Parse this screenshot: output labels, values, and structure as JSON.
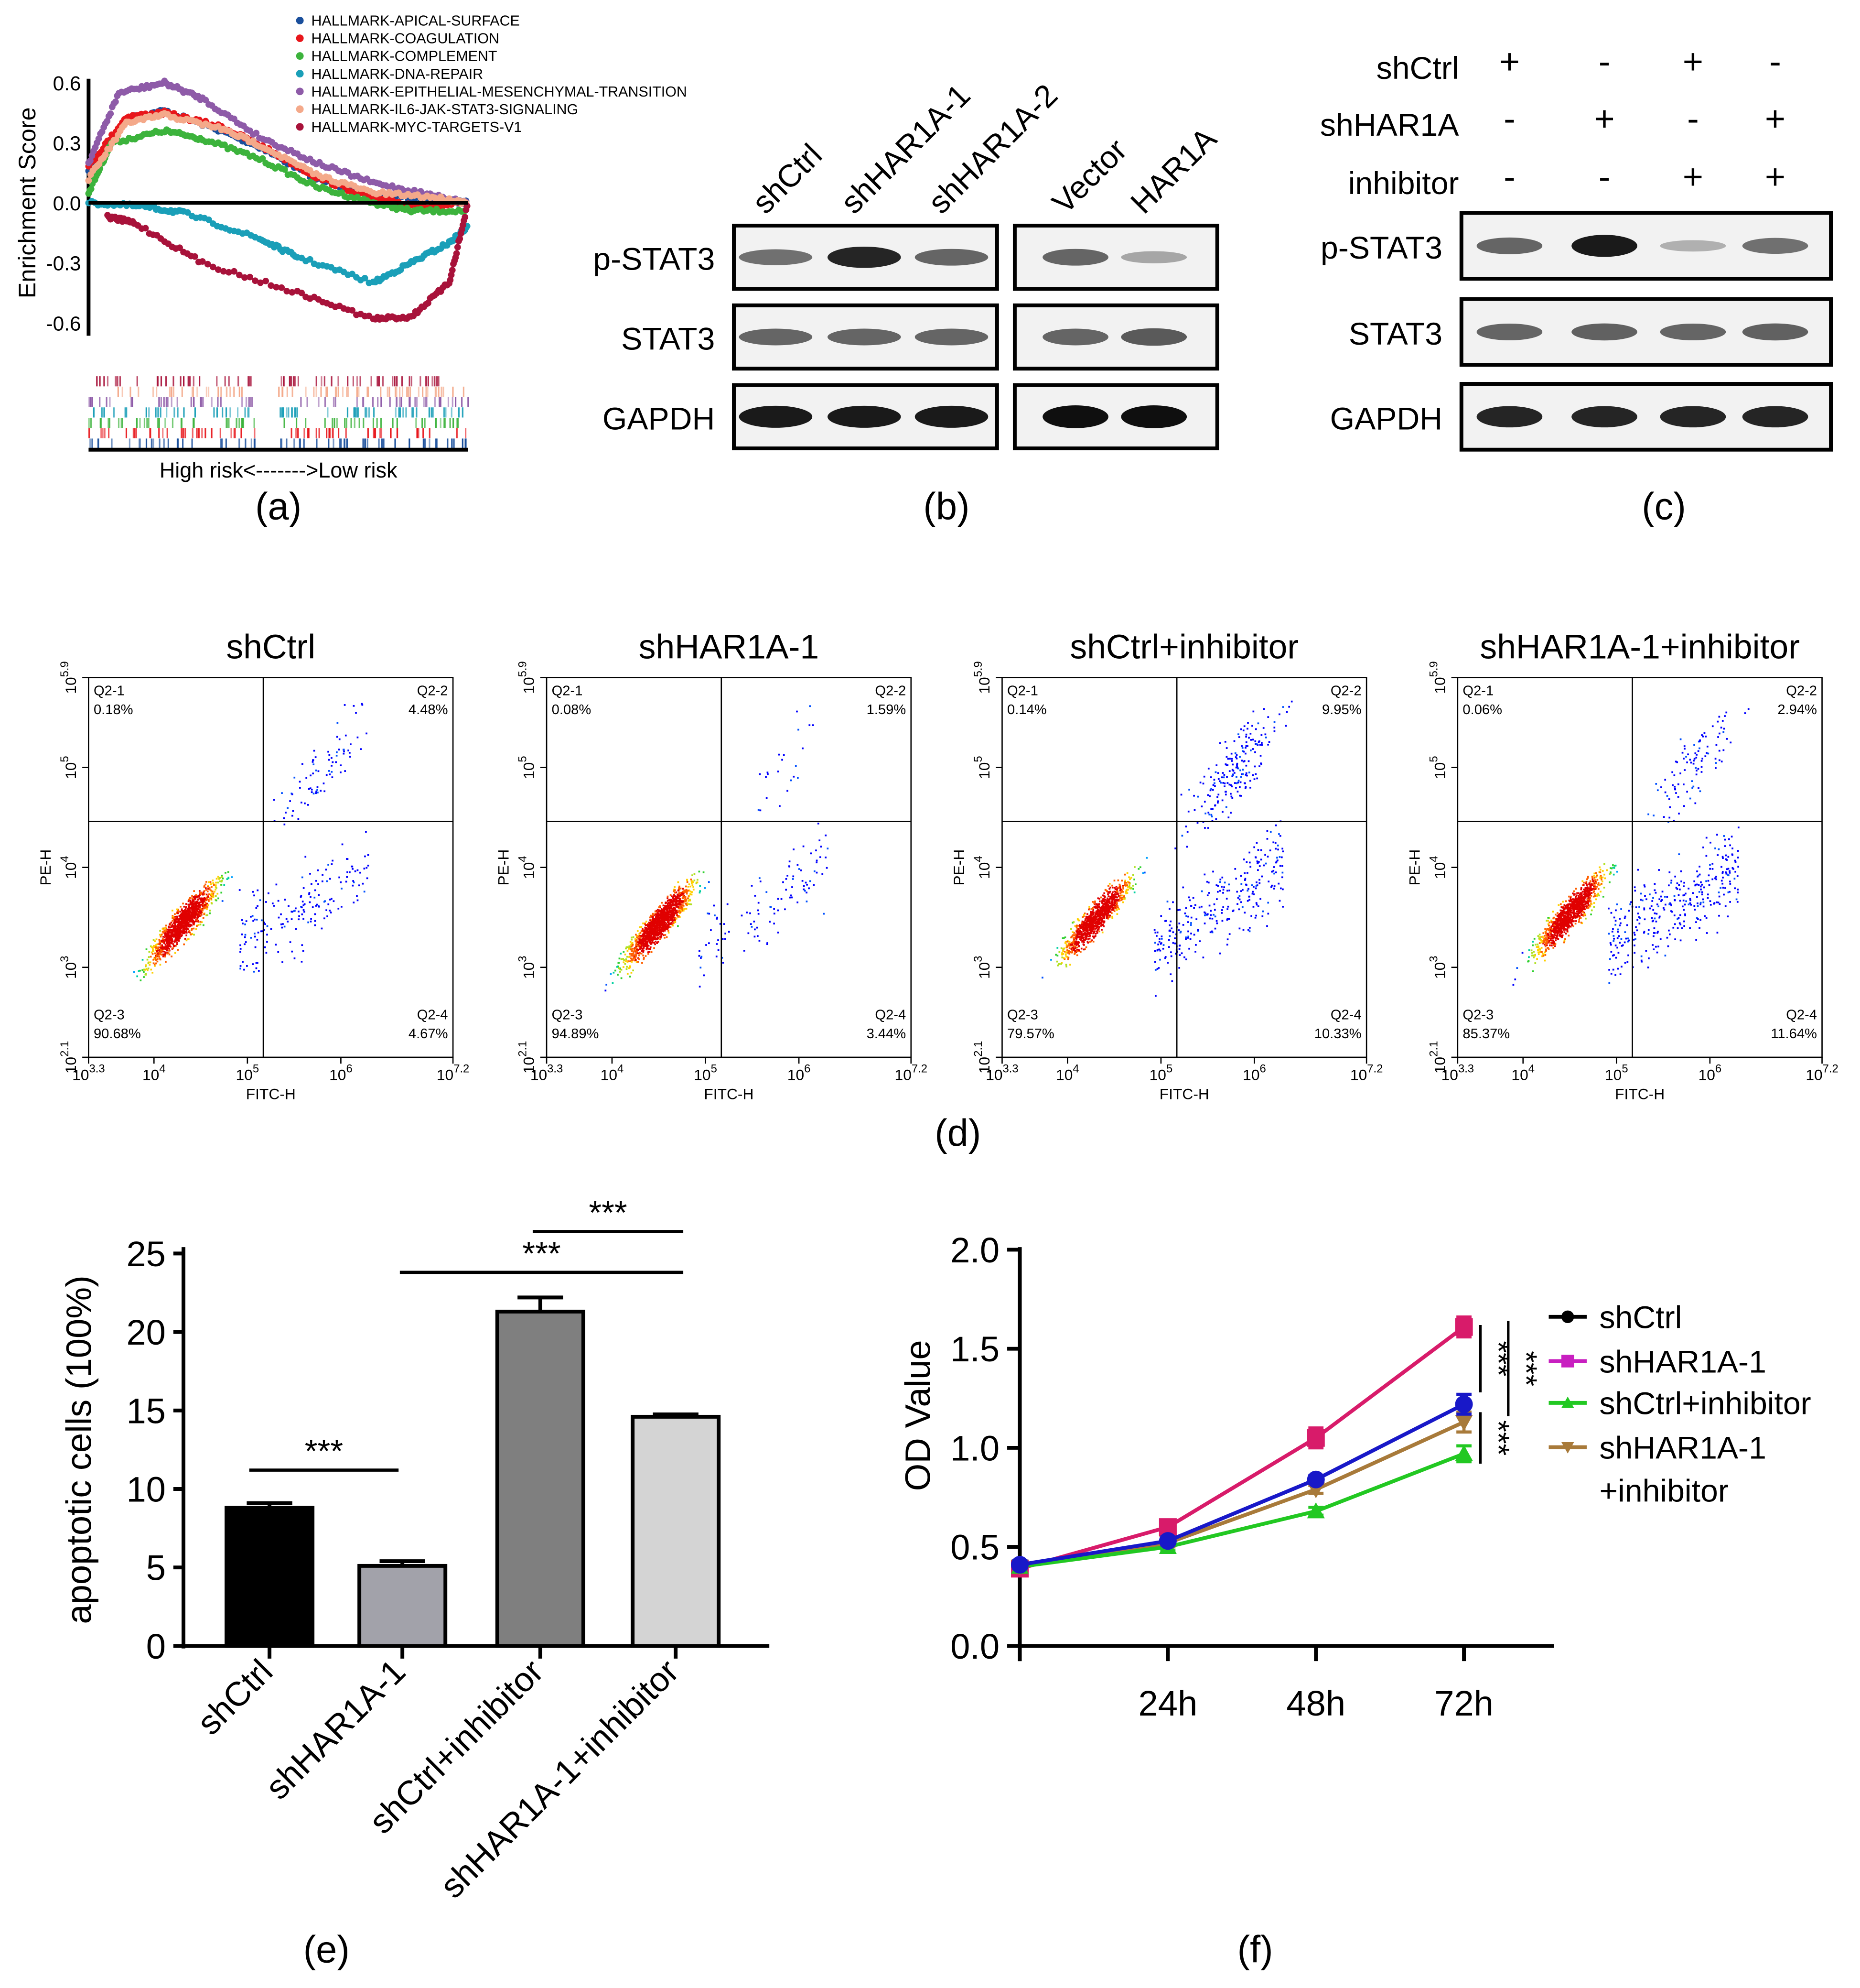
{
  "panel_labels": {
    "a": "(a)",
    "b": "(b)",
    "c": "(c)",
    "d": "(d)",
    "e": "(e)",
    "f": "(f)"
  },
  "chart_data": [
    {
      "id": "a",
      "type": "line",
      "ylabel": "Enrichment Score",
      "xlabel": "High risk<------->Low risk",
      "yticks": [
        "0.6",
        "0.3",
        "0.0",
        "-0.3",
        "-0.6"
      ],
      "ytick_values": [
        0.6,
        0.3,
        0.0,
        -0.3,
        -0.6
      ],
      "ylim": [
        -0.6,
        0.6
      ],
      "series": [
        {
          "name": "HALLMARK-APICAL-SURFACE",
          "color": "#1a4f9c",
          "x": [
            0,
            0.1,
            0.2,
            0.35,
            0.45,
            0.6,
            0.75,
            0.9,
            1
          ],
          "y": [
            0.15,
            0.42,
            0.46,
            0.36,
            0.28,
            0.12,
            0.04,
            0.02,
            0
          ]
        },
        {
          "name": "HALLMARK-COAGULATION",
          "color": "#e8161b",
          "x": [
            0,
            0.1,
            0.2,
            0.35,
            0.45,
            0.6,
            0.75,
            0.9,
            1
          ],
          "y": [
            0.18,
            0.43,
            0.45,
            0.38,
            0.29,
            0.13,
            0.02,
            -0.02,
            0
          ]
        },
        {
          "name": "HALLMARK-COMPLEMENT",
          "color": "#3cb33c",
          "x": [
            0,
            0.06,
            0.2,
            0.3,
            0.45,
            0.6,
            0.75,
            0.85,
            1
          ],
          "y": [
            0.05,
            0.3,
            0.36,
            0.32,
            0.22,
            0.08,
            0.0,
            -0.04,
            -0.04
          ]
        },
        {
          "name": "HALLMARK-DNA-REPAIR",
          "color": "#1a9fb8",
          "x": [
            0,
            0.15,
            0.25,
            0.45,
            0.55,
            0.75,
            0.85,
            0.95,
            1
          ],
          "y": [
            0,
            -0.02,
            -0.05,
            -0.18,
            -0.27,
            -0.4,
            -0.3,
            -0.2,
            -0.12
          ]
        },
        {
          "name": "HALLMARK-EPITHELIAL-MESENCHYMAL-TRANSITION",
          "color": "#8e5ba8",
          "x": [
            0,
            0.08,
            0.2,
            0.3,
            0.45,
            0.6,
            0.75,
            0.9,
            1
          ],
          "y": [
            0.2,
            0.55,
            0.6,
            0.52,
            0.33,
            0.2,
            0.1,
            0.04,
            0
          ]
        },
        {
          "name": "HALLMARK-IL6-JAK-STAT3-SIGNALING",
          "color": "#f4a98a",
          "x": [
            0,
            0.1,
            0.2,
            0.35,
            0.45,
            0.6,
            0.75,
            0.9,
            1
          ],
          "y": [
            0.12,
            0.4,
            0.44,
            0.37,
            0.29,
            0.14,
            0.05,
            0.03,
            0
          ]
        },
        {
          "name": "HALLMARK-MYC-TARGETS-V1",
          "color": "#a8123a",
          "x": [
            0.05,
            0.12,
            0.3,
            0.55,
            0.75,
            0.85,
            0.95,
            1
          ],
          "y": [
            -0.07,
            -0.1,
            -0.3,
            -0.45,
            -0.58,
            -0.57,
            -0.4,
            0
          ]
        }
      ]
    },
    {
      "id": "e",
      "type": "bar",
      "ylabel": "apoptotic cells (100%)",
      "categories": [
        "shCtrl",
        "shHAR1A-1",
        "shCtrl+inhibitor",
        "shHAR1A-1+inhibitor"
      ],
      "values": [
        8.8,
        5.1,
        21.3,
        14.6
      ],
      "errors": [
        0.3,
        0.3,
        0.9,
        0.15
      ],
      "colors": [
        "#000000",
        "#a2a2aa",
        "#7f7f7f",
        "#d4d4d4"
      ],
      "ylim": [
        0,
        25
      ],
      "yticks": [
        "0",
        "5",
        "10",
        "15",
        "20",
        "25"
      ],
      "ytick_values": [
        0,
        5,
        10,
        15,
        20,
        25
      ],
      "significance": [
        {
          "from": 0,
          "to": 1,
          "label": "***",
          "y": 11.2
        },
        {
          "from": 1,
          "to": 3,
          "label": "***",
          "y": 23.8
        },
        {
          "from": 2,
          "to": 3,
          "label": "***",
          "y": 26.4
        }
      ]
    },
    {
      "id": "f",
      "type": "line",
      "ylabel": "OD Value",
      "x": [
        0,
        24,
        48,
        72
      ],
      "xticks": [
        "24h",
        "48h",
        "72h"
      ],
      "ylim": [
        0,
        2.0
      ],
      "yticks": [
        "0.0",
        "0.5",
        "1.0",
        "1.5",
        "2.0"
      ],
      "ytick_values": [
        0,
        0.5,
        1.0,
        1.5,
        2.0
      ],
      "series": [
        {
          "name": "shCtrl",
          "color": "#1818c8",
          "legend_color": "#000000",
          "marker": "circle",
          "values": [
            0.41,
            0.53,
            0.84,
            1.22
          ],
          "errors": [
            0.02,
            0.02,
            0.02,
            0.05
          ]
        },
        {
          "name": "shHAR1A-1",
          "color": "#d81b6a",
          "legend_color": "#c81fc0",
          "marker": "square",
          "values": [
            0.39,
            0.6,
            1.05,
            1.61
          ],
          "errors": [
            0.02,
            0.03,
            0.05,
            0.05
          ]
        },
        {
          "name": "shCtrl+inhibitor",
          "color": "#22c822",
          "legend_color": "#22c822",
          "marker": "triangle-up",
          "values": [
            0.4,
            0.5,
            0.68,
            0.97
          ],
          "errors": [
            0.01,
            0.02,
            0.02,
            0.04
          ]
        },
        {
          "name": "shHAR1A-1",
          "name_line2": "+inhibitor",
          "color": "#a87a3a",
          "legend_color": "#a87a3a",
          "marker": "triangle-down",
          "values": [
            0.4,
            0.52,
            0.79,
            1.13
          ],
          "errors": [
            0.01,
            0.02,
            0.02,
            0.05
          ]
        }
      ],
      "significance": [
        {
          "label": "***",
          "y_from": 1.28,
          "y_to": 1.62
        },
        {
          "label": "***",
          "y_from": 1.16,
          "y_to": 1.64
        },
        {
          "label": "***",
          "y_from": 0.92,
          "y_to": 1.18
        }
      ]
    }
  ],
  "western_b": {
    "lanes": [
      "shCtrl",
      "shHAR1A-1",
      "shHAR1A-2",
      "Vector",
      "HAR1A"
    ],
    "rows": [
      {
        "label": "p-STAT3",
        "intensity": [
          0.55,
          0.9,
          0.6,
          0.6,
          0.3
        ]
      },
      {
        "label": "STAT3",
        "intensity": [
          0.6,
          0.6,
          0.6,
          0.6,
          0.65
        ]
      },
      {
        "label": "GAPDH",
        "intensity": [
          0.95,
          0.95,
          0.95,
          1.0,
          1.0
        ]
      }
    ]
  },
  "western_c": {
    "conditions": [
      {
        "label": "shCtrl",
        "signs": [
          "+",
          "-",
          "+",
          "-"
        ]
      },
      {
        "label": "shHAR1A",
        "signs": [
          "-",
          "+",
          "-",
          "+"
        ]
      },
      {
        "label": "inhibitor",
        "signs": [
          "-",
          "-",
          "+",
          "+"
        ]
      }
    ],
    "rows": [
      {
        "label": "p-STAT3",
        "intensity": [
          0.6,
          0.95,
          0.25,
          0.55
        ]
      },
      {
        "label": "STAT3",
        "intensity": [
          0.6,
          0.62,
          0.6,
          0.62
        ]
      },
      {
        "label": "GAPDH",
        "intensity": [
          0.9,
          0.9,
          0.9,
          0.9
        ]
      }
    ]
  },
  "flow_d": {
    "xlabel": "FITC-H",
    "ylabel": "PE-H",
    "xticks": [
      {
        "base": "10",
        "exp": "3.3"
      },
      {
        "base": "10",
        "exp": "4"
      },
      {
        "base": "10",
        "exp": "5"
      },
      {
        "base": "10",
        "exp": "6"
      },
      {
        "base": "10",
        "exp": "7.2"
      }
    ],
    "yticks": [
      {
        "base": "10",
        "exp": "2.1"
      },
      {
        "base": "10",
        "exp": "3"
      },
      {
        "base": "10",
        "exp": "4"
      },
      {
        "base": "10",
        "exp": "5"
      },
      {
        "base": "10",
        "exp": "5.9"
      }
    ],
    "plots": [
      {
        "title": "shCtrl",
        "q": [
          [
            "Q2-1",
            "0.18%"
          ],
          [
            "Q2-2",
            "4.48%"
          ],
          [
            "Q2-3",
            "90.68%"
          ],
          [
            "Q2-4",
            "4.67%"
          ]
        ]
      },
      {
        "title": "shHAR1A-1",
        "q": [
          [
            "Q2-1",
            "0.08%"
          ],
          [
            "Q2-2",
            "1.59%"
          ],
          [
            "Q2-3",
            "94.89%"
          ],
          [
            "Q2-4",
            "3.44%"
          ]
        ]
      },
      {
        "title": "shCtrl+inhibitor",
        "q": [
          [
            "Q2-1",
            "0.14%"
          ],
          [
            "Q2-2",
            "9.95%"
          ],
          [
            "Q2-3",
            "79.57%"
          ],
          [
            "Q2-4",
            "10.33%"
          ]
        ]
      },
      {
        "title": "shHAR1A-1+inhibitor",
        "q": [
          [
            "Q2-1",
            "0.06%"
          ],
          [
            "Q2-2",
            "2.94%"
          ],
          [
            "Q2-3",
            "85.37%"
          ],
          [
            "Q2-4",
            "11.64%"
          ]
        ]
      }
    ]
  }
}
